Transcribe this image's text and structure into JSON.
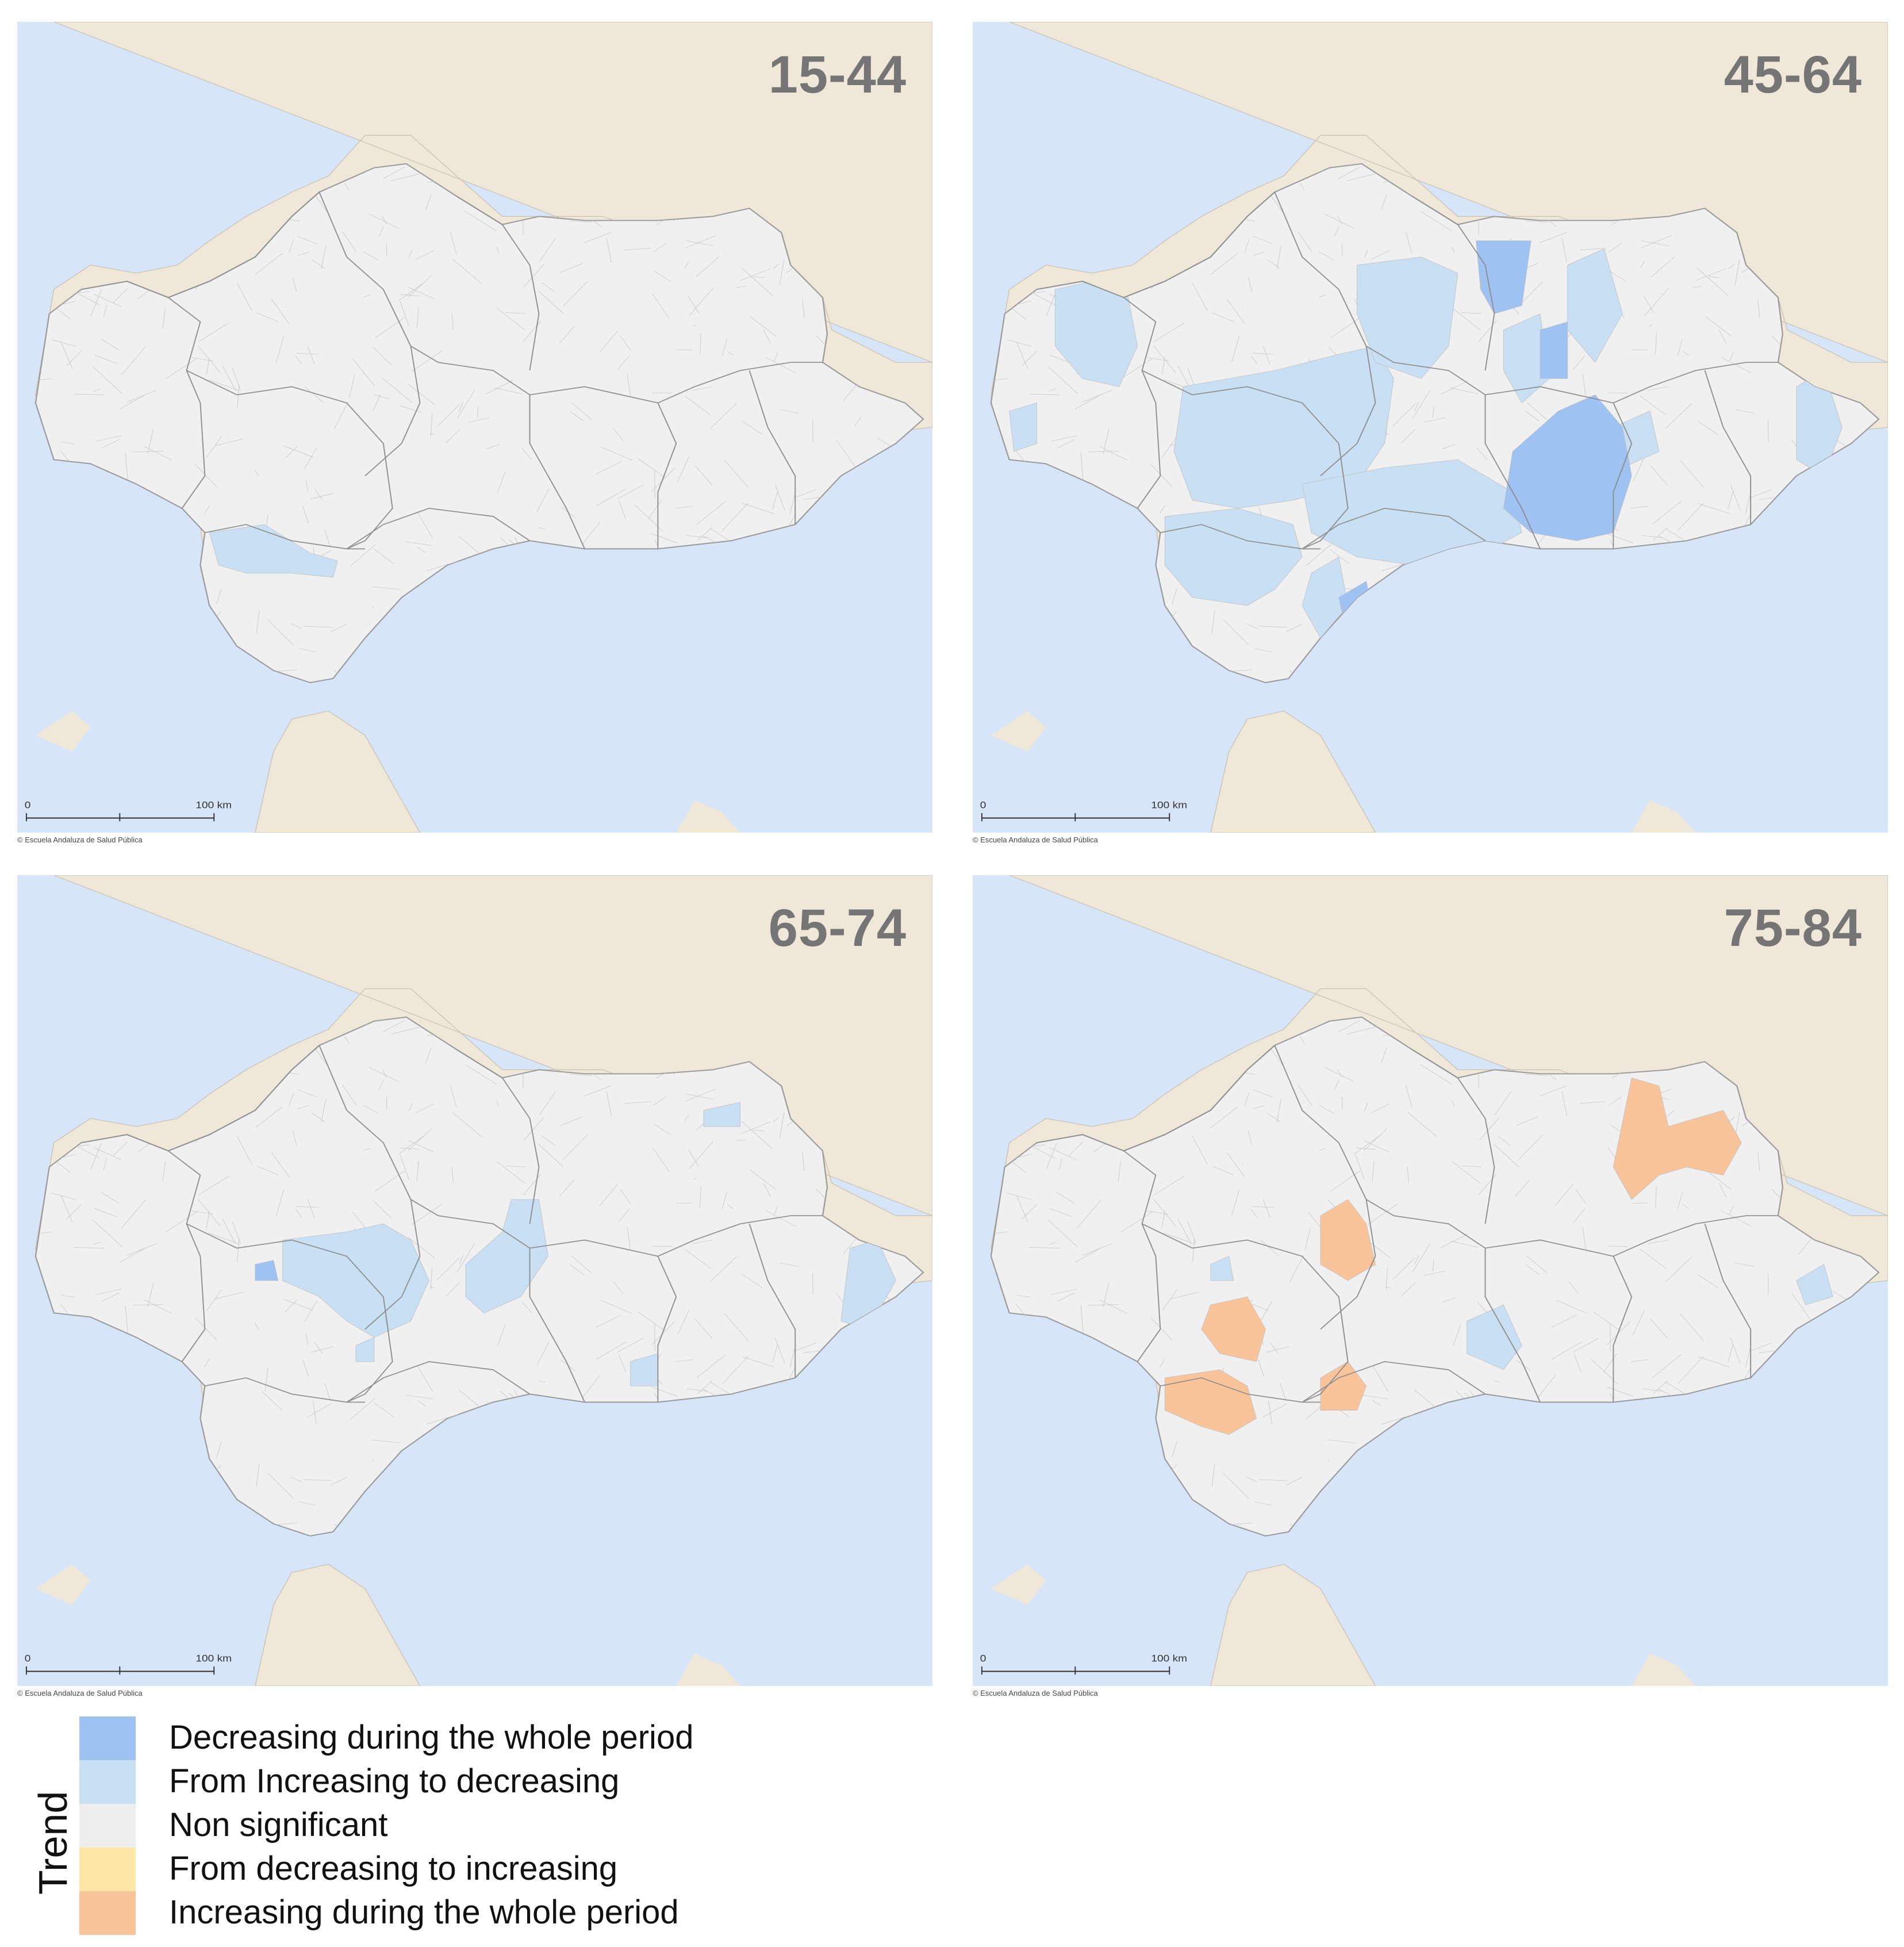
{
  "colors": {
    "land_bg": "#efe7d8",
    "sea": "#d6e6f8",
    "region": "#f0f0f0",
    "region_border": "#aeaeae",
    "decreasing": "#9ec2f2",
    "inc_to_dec": "#c9e0f4",
    "non_significant": "#eeeeee",
    "dec_to_inc": "#fde6a6",
    "increasing": "#f9c49a"
  },
  "panels": [
    {
      "label": "15-44",
      "scale_start": "0",
      "scale_end": "100 km",
      "credit": "© Escuela Andaluza de Salud Pública",
      "patches": [
        {
          "category": "inc_to_dec",
          "polygon": [
            [
              0.21,
              0.63
            ],
            [
              0.27,
              0.62
            ],
            [
              0.32,
              0.655
            ],
            [
              0.35,
              0.665
            ],
            [
              0.345,
              0.685
            ],
            [
              0.3,
              0.68
            ],
            [
              0.25,
              0.68
            ],
            [
              0.22,
              0.67
            ]
          ]
        },
        {
          "category": "inc_to_dec",
          "polygon": [
            [
              0.47,
              0.675
            ],
            [
              0.5,
              0.665
            ],
            [
              0.505,
              0.69
            ],
            [
              0.475,
              0.695
            ]
          ]
        }
      ]
    },
    {
      "label": "45-64",
      "scale_start": "0",
      "scale_end": "100 km",
      "credit": "© Escuela Andaluza de Salud Pública",
      "patches": [
        {
          "category": "inc_to_dec",
          "polygon": [
            [
              0.09,
              0.33
            ],
            [
              0.13,
              0.32
            ],
            [
              0.17,
              0.34
            ],
            [
              0.18,
              0.4
            ],
            [
              0.16,
              0.45
            ],
            [
              0.12,
              0.44
            ],
            [
              0.09,
              0.4
            ]
          ]
        },
        {
          "category": "inc_to_dec",
          "polygon": [
            [
              0.04,
              0.48
            ],
            [
              0.07,
              0.47
            ],
            [
              0.07,
              0.52
            ],
            [
              0.045,
              0.53
            ]
          ]
        },
        {
          "category": "inc_to_dec",
          "polygon": [
            [
              0.23,
              0.45
            ],
            [
              0.33,
              0.43
            ],
            [
              0.4,
              0.41
            ],
            [
              0.44,
              0.4
            ],
            [
              0.46,
              0.44
            ],
            [
              0.45,
              0.52
            ],
            [
              0.42,
              0.57
            ],
            [
              0.35,
              0.59
            ],
            [
              0.29,
              0.6
            ],
            [
              0.24,
              0.59
            ],
            [
              0.22,
              0.53
            ]
          ]
        },
        {
          "category": "inc_to_dec",
          "polygon": [
            [
              0.21,
              0.61
            ],
            [
              0.29,
              0.6
            ],
            [
              0.35,
              0.62
            ],
            [
              0.36,
              0.66
            ],
            [
              0.33,
              0.7
            ],
            [
              0.3,
              0.72
            ],
            [
              0.24,
              0.71
            ],
            [
              0.21,
              0.67
            ]
          ]
        },
        {
          "category": "inc_to_dec",
          "polygon": [
            [
              0.42,
              0.3
            ],
            [
              0.49,
              0.29
            ],
            [
              0.53,
              0.31
            ],
            [
              0.52,
              0.4
            ],
            [
              0.49,
              0.44
            ],
            [
              0.44,
              0.42
            ],
            [
              0.42,
              0.36
            ]
          ]
        },
        {
          "category": "inc_to_dec",
          "polygon": [
            [
              0.36,
              0.57
            ],
            [
              0.45,
              0.55
            ],
            [
              0.53,
              0.54
            ],
            [
              0.59,
              0.58
            ],
            [
              0.6,
              0.63
            ],
            [
              0.55,
              0.66
            ],
            [
              0.48,
              0.67
            ],
            [
              0.42,
              0.66
            ],
            [
              0.37,
              0.63
            ]
          ]
        },
        {
          "category": "inc_to_dec",
          "polygon": [
            [
              0.58,
              0.38
            ],
            [
              0.62,
              0.36
            ],
            [
              0.63,
              0.44
            ],
            [
              0.6,
              0.47
            ],
            [
              0.58,
              0.43
            ]
          ]
        },
        {
          "category": "inc_to_dec",
          "polygon": [
            [
              0.65,
              0.3
            ],
            [
              0.69,
              0.28
            ],
            [
              0.71,
              0.36
            ],
            [
              0.68,
              0.42
            ],
            [
              0.65,
              0.38
            ]
          ]
        },
        {
          "category": "inc_to_dec",
          "polygon": [
            [
              0.7,
              0.5
            ],
            [
              0.74,
              0.48
            ],
            [
              0.75,
              0.53
            ],
            [
              0.71,
              0.55
            ]
          ]
        },
        {
          "category": "inc_to_dec",
          "polygon": [
            [
              0.9,
              0.45
            ],
            [
              0.93,
              0.43
            ],
            [
              0.95,
              0.5
            ],
            [
              0.93,
              0.56
            ],
            [
              0.9,
              0.54
            ]
          ]
        },
        {
          "category": "inc_to_dec",
          "polygon": [
            [
              0.37,
              0.68
            ],
            [
              0.4,
              0.66
            ],
            [
              0.41,
              0.72
            ],
            [
              0.38,
              0.76
            ],
            [
              0.36,
              0.72
            ]
          ]
        },
        {
          "category": "decreasing",
          "polygon": [
            [
              0.55,
              0.27
            ],
            [
              0.61,
              0.27
            ],
            [
              0.6,
              0.35
            ],
            [
              0.57,
              0.36
            ],
            [
              0.555,
              0.33
            ]
          ]
        },
        {
          "category": "decreasing",
          "polygon": [
            [
              0.62,
              0.38
            ],
            [
              0.65,
              0.37
            ],
            [
              0.65,
              0.44
            ],
            [
              0.62,
              0.44
            ]
          ]
        },
        {
          "category": "decreasing",
          "polygon": [
            [
              0.59,
              0.53
            ],
            [
              0.64,
              0.48
            ],
            [
              0.68,
              0.46
            ],
            [
              0.71,
              0.5
            ],
            [
              0.72,
              0.56
            ],
            [
              0.7,
              0.63
            ],
            [
              0.66,
              0.64
            ],
            [
              0.61,
              0.63
            ],
            [
              0.58,
              0.6
            ]
          ]
        },
        {
          "category": "decreasing",
          "polygon": [
            [
              0.4,
              0.71
            ],
            [
              0.43,
              0.69
            ],
            [
              0.44,
              0.74
            ],
            [
              0.41,
              0.76
            ]
          ]
        }
      ]
    },
    {
      "label": "65-74",
      "scale_start": "0",
      "scale_end": "100 km",
      "credit": "© Escuela Andaluza de Salud Pública",
      "patches": [
        {
          "category": "inc_to_dec",
          "polygon": [
            [
              0.29,
              0.45
            ],
            [
              0.36,
              0.44
            ],
            [
              0.4,
              0.43
            ],
            [
              0.43,
              0.45
            ],
            [
              0.45,
              0.5
            ],
            [
              0.43,
              0.55
            ],
            [
              0.39,
              0.57
            ],
            [
              0.36,
              0.55
            ],
            [
              0.33,
              0.52
            ],
            [
              0.29,
              0.5
            ]
          ]
        },
        {
          "category": "inc_to_dec",
          "polygon": [
            [
              0.49,
              0.48
            ],
            [
              0.53,
              0.44
            ],
            [
              0.54,
              0.4
            ],
            [
              0.57,
              0.4
            ],
            [
              0.58,
              0.47
            ],
            [
              0.55,
              0.52
            ],
            [
              0.51,
              0.54
            ],
            [
              0.49,
              0.52
            ]
          ]
        },
        {
          "category": "inc_to_dec",
          "polygon": [
            [
              0.75,
              0.29
            ],
            [
              0.79,
              0.28
            ],
            [
              0.79,
              0.31
            ],
            [
              0.75,
              0.31
            ]
          ]
        },
        {
          "category": "inc_to_dec",
          "polygon": [
            [
              0.91,
              0.46
            ],
            [
              0.94,
              0.45
            ],
            [
              0.96,
              0.5
            ],
            [
              0.93,
              0.56
            ],
            [
              0.9,
              0.55
            ]
          ]
        },
        {
          "category": "inc_to_dec",
          "polygon": [
            [
              0.67,
              0.6
            ],
            [
              0.7,
              0.59
            ],
            [
              0.7,
              0.63
            ],
            [
              0.67,
              0.63
            ]
          ]
        },
        {
          "category": "inc_to_dec",
          "polygon": [
            [
              0.37,
              0.58
            ],
            [
              0.39,
              0.57
            ],
            [
              0.39,
              0.6
            ],
            [
              0.37,
              0.6
            ]
          ]
        },
        {
          "category": "inc_to_dec",
          "polygon": [
            [
              0.47,
              0.68
            ],
            [
              0.49,
              0.67
            ],
            [
              0.49,
              0.69
            ],
            [
              0.47,
              0.69
            ]
          ]
        },
        {
          "category": "decreasing",
          "polygon": [
            [
              0.26,
              0.48
            ],
            [
              0.28,
              0.475
            ],
            [
              0.285,
              0.5
            ],
            [
              0.26,
              0.5
            ]
          ]
        }
      ]
    },
    {
      "label": "75-84",
      "scale_start": "0",
      "scale_end": "100 km",
      "credit": "© Escuela Andaluza de Salud Pública",
      "patches": [
        {
          "category": "increasing",
          "polygon": [
            [
              0.72,
              0.25
            ],
            [
              0.75,
              0.26
            ],
            [
              0.76,
              0.31
            ],
            [
              0.79,
              0.3
            ],
            [
              0.82,
              0.29
            ],
            [
              0.84,
              0.33
            ],
            [
              0.82,
              0.37
            ],
            [
              0.78,
              0.36
            ],
            [
              0.75,
              0.37
            ],
            [
              0.72,
              0.4
            ],
            [
              0.7,
              0.36
            ]
          ]
        },
        {
          "category": "increasing",
          "polygon": [
            [
              0.38,
              0.42
            ],
            [
              0.41,
              0.4
            ],
            [
              0.43,
              0.43
            ],
            [
              0.44,
              0.48
            ],
            [
              0.41,
              0.5
            ],
            [
              0.38,
              0.48
            ]
          ]
        },
        {
          "category": "increasing",
          "polygon": [
            [
              0.26,
              0.53
            ],
            [
              0.3,
              0.52
            ],
            [
              0.32,
              0.56
            ],
            [
              0.31,
              0.6
            ],
            [
              0.27,
              0.59
            ],
            [
              0.25,
              0.56
            ]
          ]
        },
        {
          "category": "increasing",
          "polygon": [
            [
              0.21,
              0.62
            ],
            [
              0.27,
              0.61
            ],
            [
              0.3,
              0.63
            ],
            [
              0.31,
              0.67
            ],
            [
              0.28,
              0.69
            ],
            [
              0.25,
              0.68
            ],
            [
              0.21,
              0.66
            ]
          ]
        },
        {
          "category": "increasing",
          "polygon": [
            [
              0.38,
              0.62
            ],
            [
              0.41,
              0.6
            ],
            [
              0.43,
              0.63
            ],
            [
              0.42,
              0.66
            ],
            [
              0.38,
              0.66
            ]
          ]
        },
        {
          "category": "inc_to_dec",
          "polygon": [
            [
              0.54,
              0.55
            ],
            [
              0.58,
              0.53
            ],
            [
              0.6,
              0.58
            ],
            [
              0.58,
              0.61
            ],
            [
              0.54,
              0.59
            ]
          ]
        },
        {
          "category": "inc_to_dec",
          "polygon": [
            [
              0.9,
              0.5
            ],
            [
              0.93,
              0.48
            ],
            [
              0.94,
              0.52
            ],
            [
              0.91,
              0.53
            ]
          ]
        },
        {
          "category": "inc_to_dec",
          "polygon": [
            [
              0.26,
              0.48
            ],
            [
              0.28,
              0.47
            ],
            [
              0.285,
              0.5
            ],
            [
              0.26,
              0.5
            ]
          ]
        }
      ]
    }
  ],
  "legend": {
    "title": "Trend",
    "items": [
      {
        "label": "Decreasing during the whole period",
        "category": "decreasing"
      },
      {
        "label": "From Increasing to decreasing",
        "category": "inc_to_dec"
      },
      {
        "label": "Non significant",
        "category": "non_significant"
      },
      {
        "label": "From decreasing to increasing",
        "category": "dec_to_inc"
      },
      {
        "label": "Increasing during the whole period",
        "category": "increasing"
      }
    ]
  }
}
